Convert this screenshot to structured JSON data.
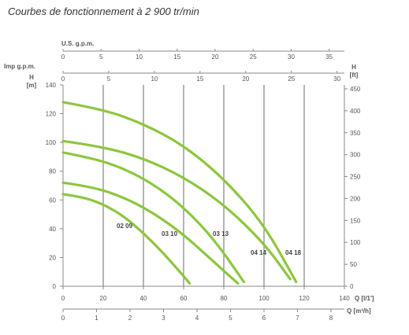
{
  "title": "Courbes de fonctionnement à 2 900 tr/min",
  "chart_data": {
    "type": "line",
    "title": "",
    "curve_color": "#8cc63f",
    "grid": "vertical",
    "x_axes": [
      {
        "label": "Q [l/1']",
        "ticks": [
          0,
          20,
          40,
          60,
          80,
          100,
          120,
          140
        ],
        "range": [
          0,
          140
        ],
        "position": "bottom"
      },
      {
        "label": "Q [m³/h]",
        "ticks": [
          0,
          1,
          2,
          3,
          4,
          5,
          6,
          7,
          8
        ],
        "range": [
          0,
          8.4
        ],
        "position": "bottom"
      },
      {
        "label": "Imp g.p.m.",
        "ticks": [
          0,
          5,
          10,
          15,
          20,
          25,
          30
        ],
        "range": [
          0,
          30.8
        ],
        "position": "top"
      },
      {
        "label": "U.S. g.p.m.",
        "ticks": [
          0,
          5,
          10,
          15,
          20,
          25,
          30,
          35
        ],
        "range": [
          0,
          37
        ],
        "position": "top"
      }
    ],
    "y_axes": [
      {
        "label": "H [m]",
        "ticks": [
          0,
          20,
          40,
          60,
          80,
          100,
          120,
          140
        ],
        "range": [
          0,
          140
        ],
        "position": "left"
      },
      {
        "label": "H [ft]",
        "ticks": [
          0,
          50,
          100,
          150,
          200,
          250,
          300,
          350,
          400,
          450
        ],
        "range": [
          0,
          459
        ],
        "position": "right"
      }
    ],
    "series": [
      {
        "name": "02 09",
        "x": [
          0,
          10,
          20,
          30,
          40,
          50,
          60,
          63
        ],
        "y": [
          64,
          62,
          57,
          49,
          37,
          23,
          7,
          2
        ]
      },
      {
        "name": "03 10",
        "x": [
          0,
          15,
          30,
          45,
          60,
          75,
          87
        ],
        "y": [
          72,
          69,
          62,
          51,
          36,
          17,
          2
        ]
      },
      {
        "name": "03 13",
        "x": [
          0,
          15,
          30,
          45,
          60,
          75,
          90
        ],
        "y": [
          93,
          89,
          82,
          71,
          55,
          33,
          3
        ]
      },
      {
        "name": "04 14",
        "x": [
          0,
          20,
          40,
          60,
          80,
          100,
          113
        ],
        "y": [
          101,
          97,
          89,
          76,
          57,
          30,
          5
        ]
      },
      {
        "name": "04 18",
        "x": [
          0,
          20,
          40,
          60,
          80,
          100,
          116
        ],
        "y": [
          128,
          123,
          113,
          98,
          75,
          43,
          3
        ]
      }
    ]
  }
}
